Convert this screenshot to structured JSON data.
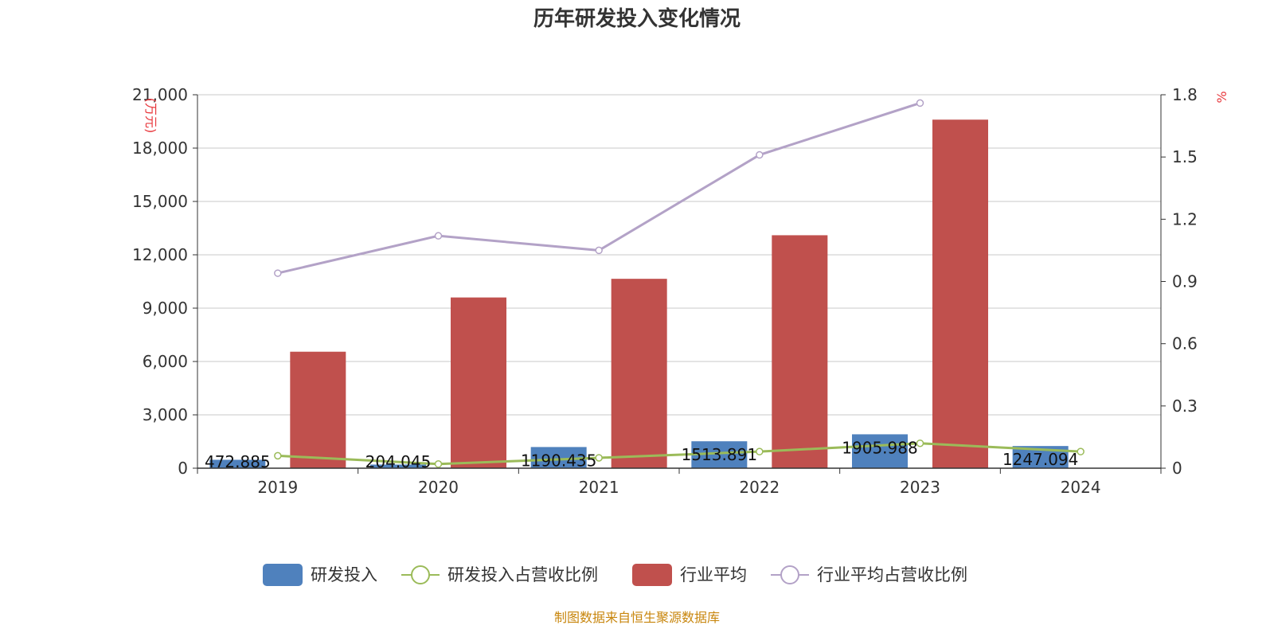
{
  "chart_data": {
    "type": "bar",
    "title": "历年研发投入变化情况",
    "categories": [
      "2019",
      "2020",
      "2021",
      "2022",
      "2023",
      "2024"
    ],
    "y_left": {
      "unit": "(万元)",
      "ylim": [
        0,
        21000
      ],
      "ticks": [
        0,
        3000,
        6000,
        9000,
        12000,
        15000,
        18000,
        21000
      ],
      "tick_labels": [
        "0",
        "3,000",
        "6,000",
        "9,000",
        "12,000",
        "15,000",
        "18,000",
        "21,000"
      ]
    },
    "y_right": {
      "unit": "%",
      "ylim": [
        0,
        1.8
      ],
      "ticks": [
        0,
        0.3,
        0.6,
        0.9,
        1.2,
        1.5,
        1.8
      ],
      "tick_labels": [
        "0",
        "0.3",
        "0.6",
        "0.9",
        "1.2",
        "1.5",
        "1.8"
      ]
    },
    "grid": true,
    "legend_position": "bottom",
    "series": [
      {
        "name": "研发投入",
        "type": "bar",
        "axis": "left",
        "color": "#4f81bd",
        "values": [
          472.885,
          204.045,
          1190.435,
          1513.891,
          1905.988,
          1247.094
        ],
        "labels": [
          "472.885",
          "204.045",
          "1190.435",
          "1513.891",
          "1905.988",
          "1247.094"
        ]
      },
      {
        "name": "研发投入占营收比例",
        "type": "line",
        "axis": "right",
        "color": "#9bbb59",
        "values": [
          0.06,
          0.02,
          0.05,
          0.08,
          0.12,
          0.08
        ]
      },
      {
        "name": "行业平均",
        "type": "bar",
        "axis": "left",
        "color": "#c0504d",
        "values": [
          6550,
          9600,
          10650,
          13100,
          19600,
          null
        ]
      },
      {
        "name": "行业平均占营收比例",
        "type": "line",
        "axis": "right",
        "color": "#b3a2c7",
        "values": [
          0.94,
          1.12,
          1.05,
          1.51,
          1.76,
          null
        ]
      }
    ]
  },
  "source_text": "制图数据来自恒生聚源数据库"
}
